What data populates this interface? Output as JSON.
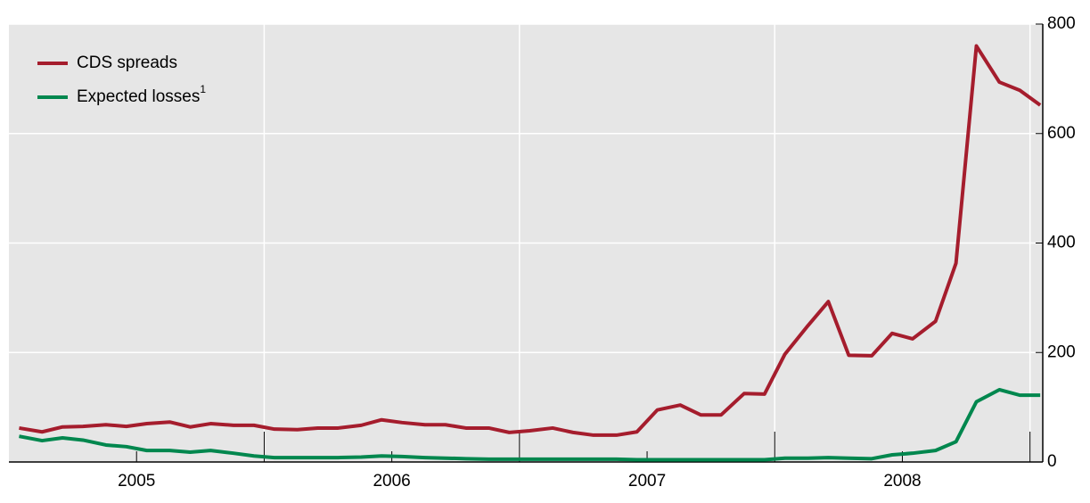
{
  "chart_data": {
    "type": "line",
    "x": [
      2005.04,
      2005.13,
      2005.21,
      2005.29,
      2005.38,
      2005.46,
      2005.54,
      2005.63,
      2005.71,
      2005.79,
      2005.88,
      2005.96,
      2006.04,
      2006.13,
      2006.21,
      2006.29,
      2006.38,
      2006.46,
      2006.54,
      2006.63,
      2006.71,
      2006.79,
      2006.88,
      2006.96,
      2007.04,
      2007.13,
      2007.21,
      2007.29,
      2007.38,
      2007.46,
      2007.54,
      2007.63,
      2007.71,
      2007.79,
      2007.88,
      2007.96,
      2008.04,
      2008.13,
      2008.21,
      2008.29,
      2008.38,
      2008.46,
      2008.54,
      2008.63,
      2008.71,
      2008.79,
      2008.88,
      2008.96,
      2009.04
    ],
    "series": [
      {
        "name": "CDS spreads",
        "color": "#a51d2d",
        "values": [
          62,
          55,
          64,
          65,
          68,
          65,
          70,
          73,
          64,
          70,
          67,
          67,
          60,
          59,
          62,
          62,
          67,
          77,
          72,
          68,
          68,
          62,
          62,
          54,
          57,
          62,
          54,
          49,
          49,
          55,
          95,
          104,
          86,
          86,
          125,
          124,
          197,
          249,
          293,
          195,
          194,
          235,
          225,
          257,
          363,
          760,
          694,
          679,
          652
        ]
      },
      {
        "name": "Expected losses",
        "note": "1",
        "color": "#00874e",
        "values": [
          47,
          39,
          44,
          40,
          31,
          28,
          21,
          21,
          18,
          21,
          16,
          11,
          8,
          8,
          8,
          8,
          9,
          11,
          10,
          8,
          7,
          6,
          5,
          5,
          5,
          5,
          5,
          5,
          5,
          4,
          4,
          4,
          4,
          4,
          4,
          4,
          7,
          7,
          8,
          7,
          6,
          13,
          16,
          21,
          37,
          110,
          132,
          122,
          122
        ]
      }
    ],
    "xlim": [
      2005.0,
      2009.05
    ],
    "xticks": [
      {
        "value": 2005.5,
        "label": "2005"
      },
      {
        "value": 2006.5,
        "label": "2006"
      },
      {
        "value": 2007.5,
        "label": "2007"
      },
      {
        "value": 2008.5,
        "label": "2008"
      }
    ],
    "xgrid": [
      2006,
      2007,
      2008,
      2009
    ],
    "ylim": [
      0,
      800
    ],
    "yticks": [
      0,
      200,
      400,
      600,
      800
    ],
    "grid": true
  }
}
